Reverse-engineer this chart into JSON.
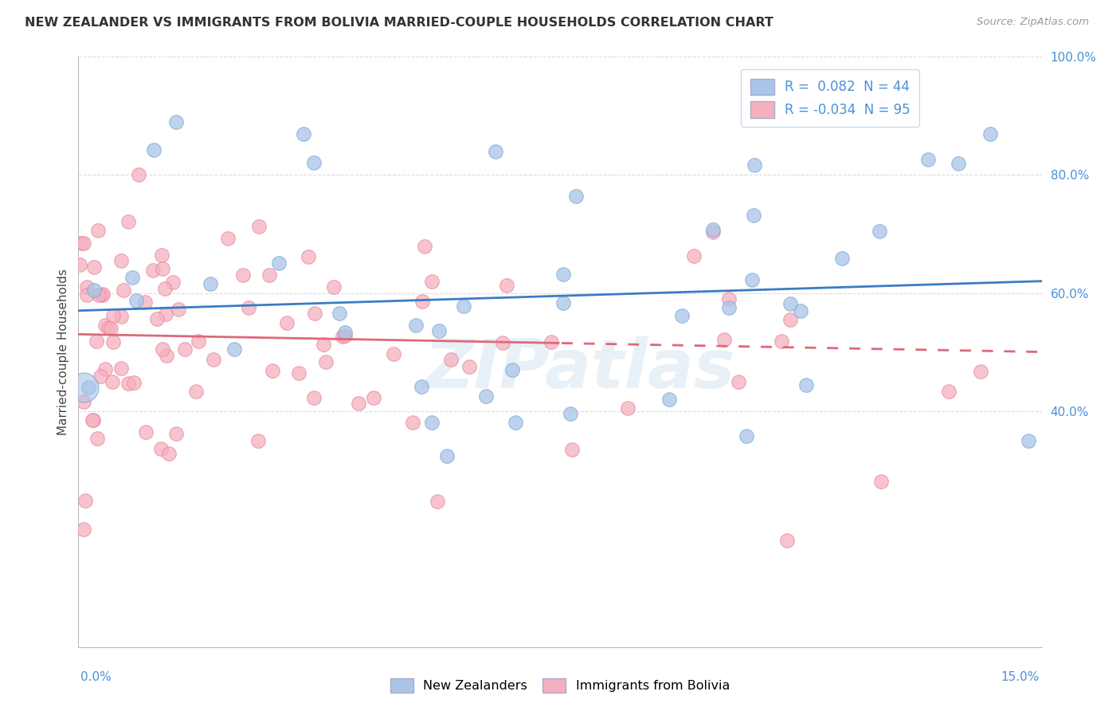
{
  "title": "NEW ZEALANDER VS IMMIGRANTS FROM BOLIVIA MARRIED-COUPLE HOUSEHOLDS CORRELATION CHART",
  "source": "Source: ZipAtlas.com",
  "ylabel": "Married-couple Households",
  "xmin": 0.0,
  "xmax": 15.0,
  "ymin": 0.0,
  "ymax": 100.0,
  "series1_color": "#aac4e8",
  "series1_edge": "#7aaad4",
  "series2_color": "#f5b0be",
  "series2_edge": "#e888a0",
  "trendline1_color": "#3a7cc4",
  "trendline2_color": "#e06878",
  "R1": 0.082,
  "N1": 44,
  "R2": -0.034,
  "N2": 95,
  "watermark": "ZIPatlas",
  "legend_label1": "New Zealanders",
  "legend_label2": "Immigrants from Bolivia",
  "ytick_color": "#4a90d9",
  "grid_color": "#d8d8d8"
}
